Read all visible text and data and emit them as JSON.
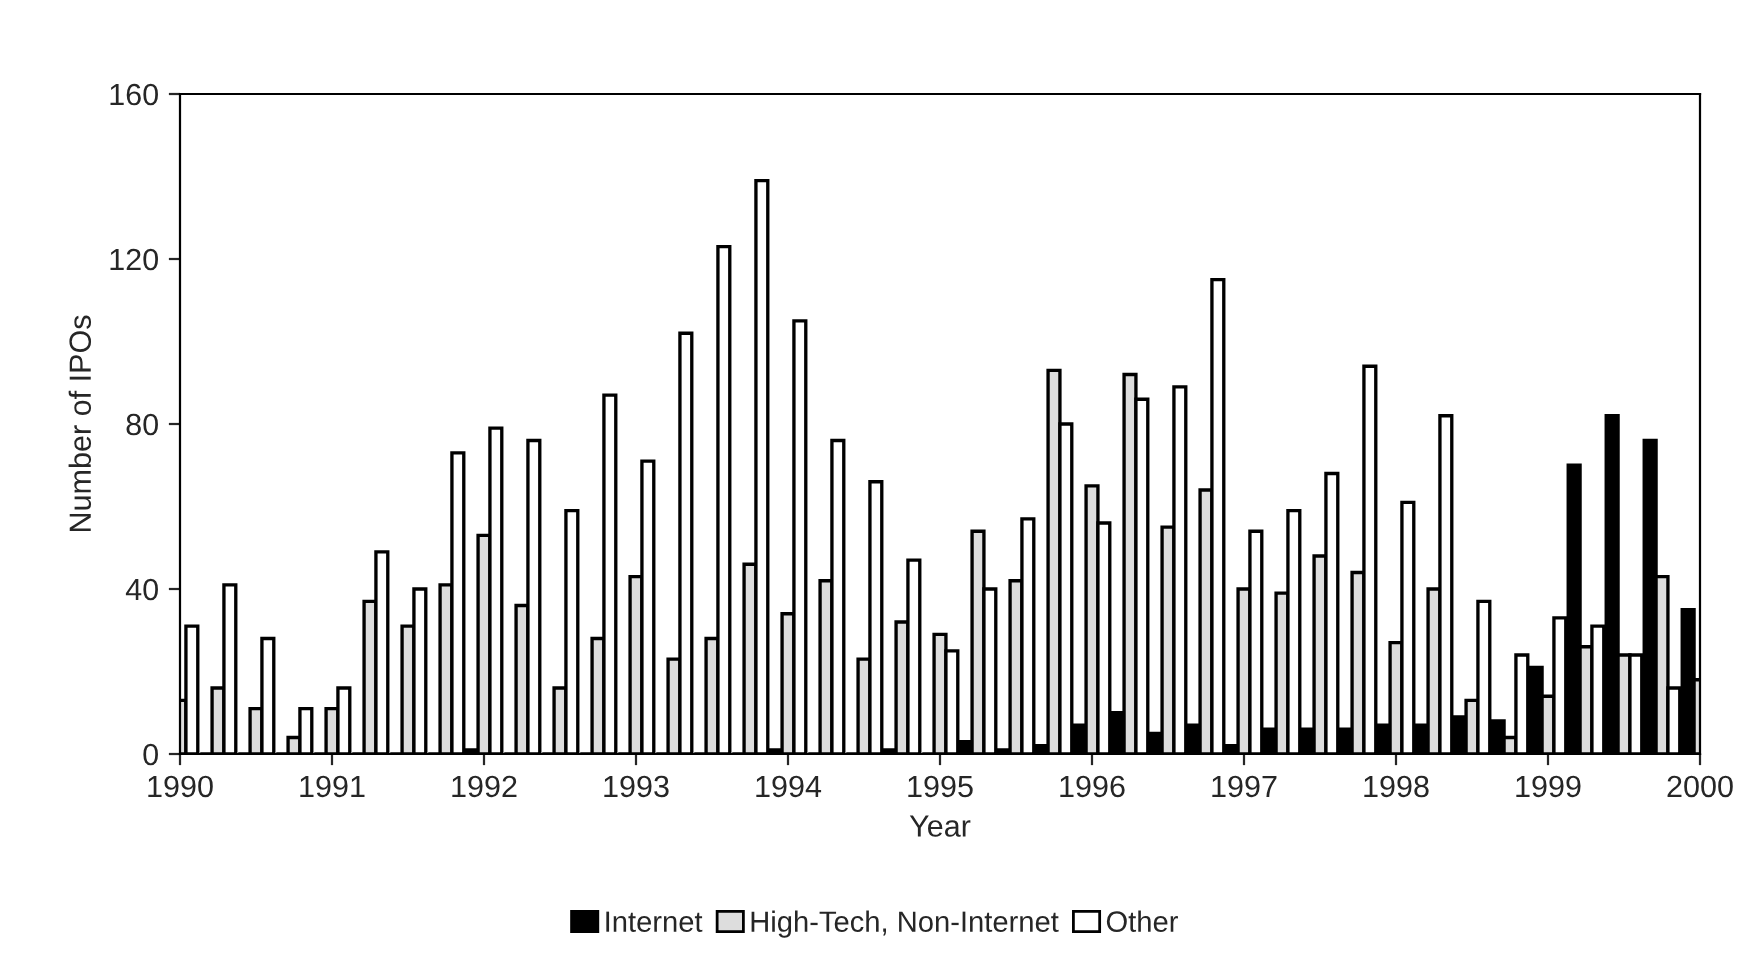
{
  "chart_data": {
    "type": "bar",
    "xlabel": "Year",
    "ylabel": "Number of IPOs",
    "x": [
      1990,
      1990.25,
      1990.5,
      1990.75,
      1991,
      1991.25,
      1991.5,
      1991.75,
      1992,
      1992.25,
      1992.5,
      1992.75,
      1993,
      1993.25,
      1993.5,
      1993.75,
      1994,
      1994.25,
      1994.5,
      1994.75,
      1995,
      1995.25,
      1995.5,
      1995.75,
      1996,
      1996.25,
      1996.5,
      1996.75,
      1997,
      1997.25,
      1997.5,
      1997.75,
      1998,
      1998.25,
      1998.5,
      1998.75,
      1999,
      1999.25,
      1999.5,
      1999.75,
      2000
    ],
    "series": [
      {
        "name": "Internet",
        "color": "#000000",
        "values": [
          null,
          0,
          0,
          0,
          0,
          0,
          0,
          0,
          1,
          0,
          0,
          0,
          0,
          0,
          0,
          0,
          1,
          0,
          0,
          1,
          0,
          3,
          1,
          2,
          7,
          10,
          5,
          7,
          2,
          6,
          6,
          6,
          7,
          7,
          9,
          8,
          21,
          70,
          82,
          76,
          35
        ]
      },
      {
        "name": "High-Tech, Non-Internet",
        "color": "#dddddd",
        "values": [
          13,
          16,
          11,
          4,
          11,
          37,
          31,
          41,
          53,
          36,
          16,
          28,
          43,
          23,
          28,
          46,
          34,
          42,
          23,
          32,
          29,
          54,
          42,
          93,
          65,
          92,
          55,
          64,
          40,
          39,
          48,
          44,
          27,
          40,
          13,
          4,
          14,
          26,
          24,
          43,
          18
        ]
      },
      {
        "name": "Other",
        "color": "#ffffff",
        "values": [
          31,
          41,
          28,
          11,
          16,
          49,
          40,
          73,
          79,
          76,
          59,
          87,
          71,
          102,
          123,
          139,
          105,
          76,
          66,
          47,
          25,
          40,
          57,
          80,
          56,
          86,
          89,
          115,
          54,
          59,
          68,
          94,
          61,
          82,
          37,
          24,
          33,
          31,
          24,
          16,
          null
        ]
      }
    ],
    "xlim": [
      1990,
      2000
    ],
    "xticks": [
      1990,
      1991,
      1992,
      1993,
      1994,
      1995,
      1996,
      1997,
      1998,
      1999,
      2000
    ],
    "ylim": [
      0,
      160
    ],
    "yticks": [
      0,
      40,
      80,
      120,
      160
    ],
    "grid": false,
    "legend": "bottom"
  }
}
